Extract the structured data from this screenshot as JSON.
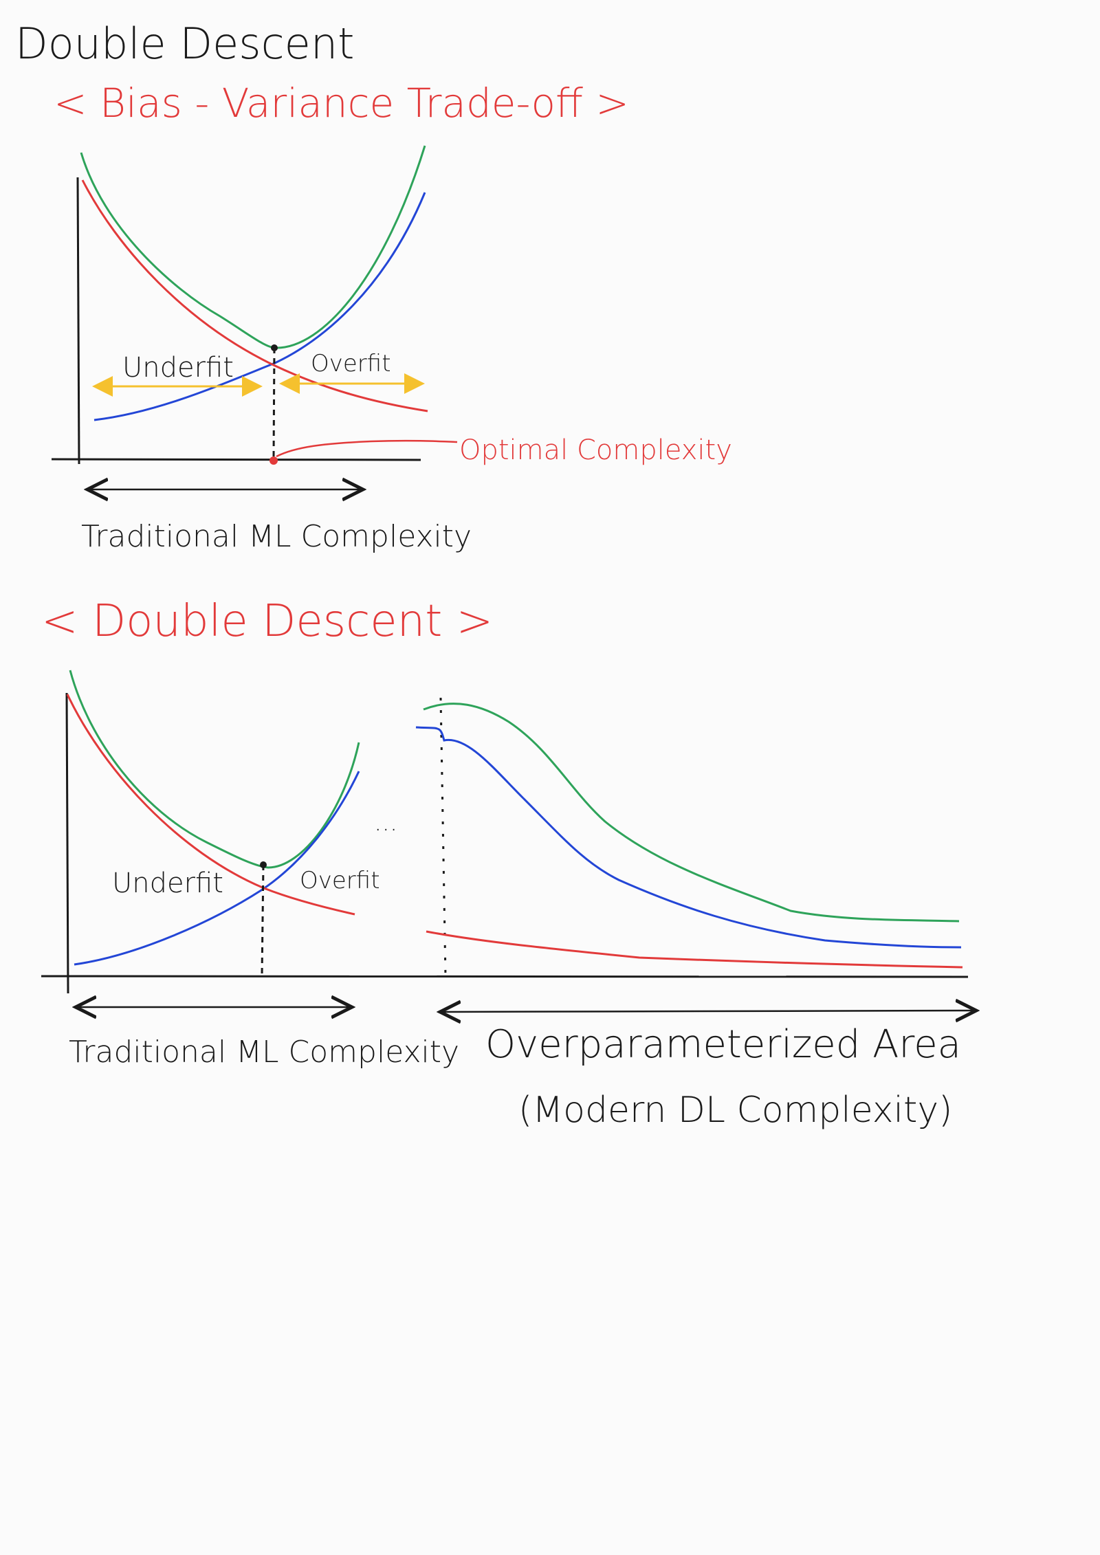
{
  "page": {
    "title": "Double Descent",
    "ink": "#1a1a1a",
    "accent": "#e23a3a"
  },
  "section1": {
    "heading": "< Bias - Variance Trade-off >",
    "underfit_label": "Underfit",
    "overfit_label": "Overfit",
    "optimal_label": "Optimal Complexity",
    "xaxis_label": "Traditional ML Complexity"
  },
  "section2": {
    "heading": "< Double Descent >",
    "underfit_label": "Underfit",
    "overfit_label": "Overfit",
    "ellipsis": "...",
    "xaxis_label": "Traditional ML Complexity",
    "over_label": "Overparameterized Area",
    "over_sublabel": "(Modern DL Complexity)"
  },
  "colors": {
    "total_error": "#2ea35a",
    "variance": "#2346d6",
    "bias": "#e23a3a",
    "arrow_yellow": "#f5c12e",
    "axis": "#1a1a1a"
  }
}
